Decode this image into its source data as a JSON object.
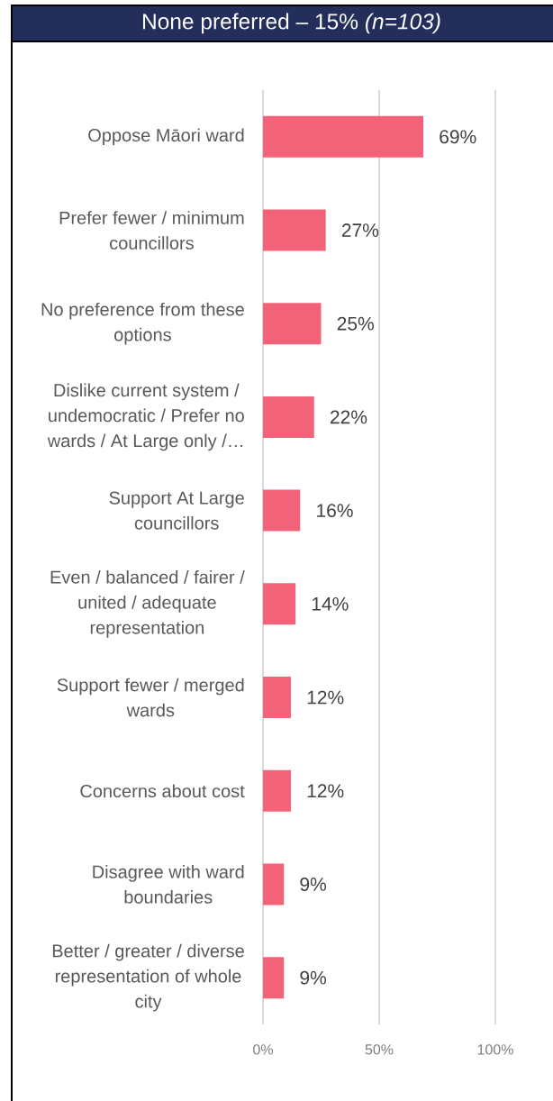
{
  "chart_data": {
    "type": "bar",
    "orientation": "horizontal",
    "title": "None preferred – 15% *(n=103)*",
    "categories": [
      "Oppose Māori ward",
      "Prefer fewer / minimum councillors",
      "No preference from these options",
      "Dislike current system / undemocratic / Prefer no wards / At Large only /…",
      "Support At Large councillors",
      "Even / balanced / fairer / united / adequate representation",
      "Support fewer / merged wards",
      "Concerns about cost",
      "Disagree with ward boundaries",
      "Better / greater / diverse representation of whole city"
    ],
    "values": [
      69,
      27,
      25,
      22,
      16,
      14,
      12,
      12,
      9,
      9
    ],
    "value_labels": [
      "69%",
      "27%",
      "25%",
      "22%",
      "16%",
      "14%",
      "12%",
      "12%",
      "9%",
      "9%"
    ],
    "color": "#f2637a",
    "xlim": [
      0,
      100
    ],
    "xticks": [
      {
        "value": 0,
        "label": "0%"
      },
      {
        "value": 50,
        "label": "50%"
      },
      {
        "value": 100,
        "label": "100%"
      }
    ],
    "grid": "x"
  }
}
